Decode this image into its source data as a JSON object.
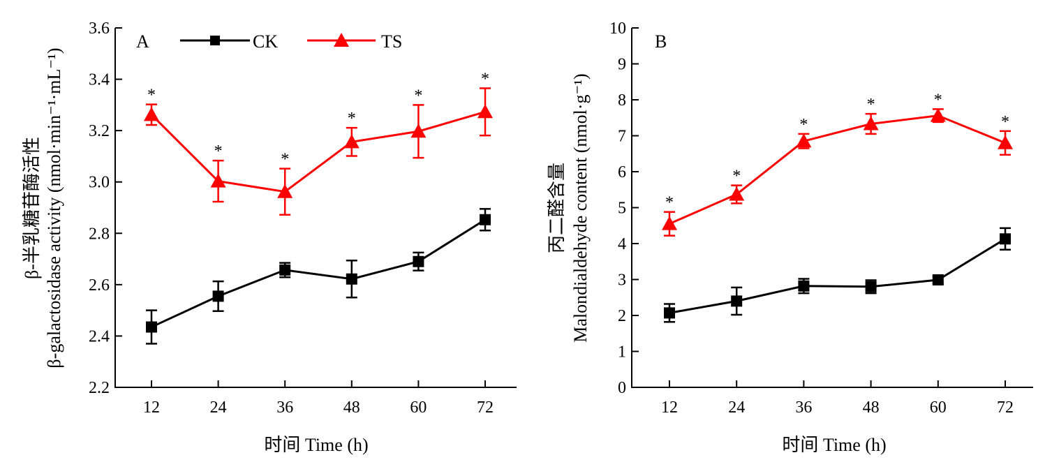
{
  "legend": {
    "ck": "CK",
    "ts": "TS",
    "position": "top"
  },
  "colors": {
    "ck": "#000000",
    "ts": "#ff0000"
  },
  "chart_data": [
    {
      "type": "line",
      "panel_label": "A",
      "x": [
        12,
        24,
        36,
        48,
        60,
        72
      ],
      "xlabel": "时间 Time (h)",
      "ylabel_cn": "β-半乳糖苷酶活性",
      "ylabel_en": "β-galactosidase activity (nmol·min⁻¹·mL⁻¹)",
      "ylim": [
        2.2,
        3.6
      ],
      "yticks": [
        "2.2",
        "2.4",
        "2.6",
        "2.8",
        "3.0",
        "3.2",
        "3.4",
        "3.6"
      ],
      "xticks": [
        "12",
        "24",
        "36",
        "48",
        "60",
        "72"
      ],
      "series": [
        {
          "name": "CK",
          "marker": "square",
          "values": [
            2.435,
            2.555,
            2.657,
            2.622,
            2.69,
            2.853
          ],
          "errors": [
            0.065,
            0.058,
            0.028,
            0.072,
            0.035,
            0.042
          ],
          "sig": [
            "",
            "",
            "",
            "",
            "",
            ""
          ]
        },
        {
          "name": "TS",
          "marker": "triangle",
          "values": [
            3.262,
            3.003,
            2.962,
            3.156,
            3.197,
            3.273
          ],
          "errors": [
            0.04,
            0.08,
            0.09,
            0.055,
            0.103,
            0.092
          ],
          "sig": [
            "*",
            "*",
            "*",
            "*",
            "*",
            "*"
          ]
        }
      ]
    },
    {
      "type": "line",
      "panel_label": "B",
      "x": [
        12,
        24,
        36,
        48,
        60,
        72
      ],
      "xlabel": "时间 Time (h)",
      "ylabel_cn": "丙二醛含量",
      "ylabel_en": "Malondialdehyde content (nmol·g⁻¹)",
      "ylim": [
        0,
        10
      ],
      "yticks": [
        "0",
        "1",
        "2",
        "3",
        "4",
        "5",
        "6",
        "7",
        "8",
        "9",
        "10"
      ],
      "xticks": [
        "12",
        "24",
        "36",
        "48",
        "60",
        "72"
      ],
      "series": [
        {
          "name": "CK",
          "marker": "square",
          "values": [
            2.07,
            2.4,
            2.82,
            2.8,
            2.99,
            4.13
          ],
          "errors": [
            0.25,
            0.38,
            0.2,
            0.18,
            0.1,
            0.3
          ],
          "sig": [
            "",
            "",
            "",
            "",
            "",
            ""
          ]
        },
        {
          "name": "TS",
          "marker": "triangle",
          "values": [
            4.55,
            5.37,
            6.85,
            7.33,
            7.56,
            6.8
          ],
          "errors": [
            0.33,
            0.25,
            0.2,
            0.28,
            0.18,
            0.33
          ],
          "sig": [
            "*",
            "*",
            "*",
            "*",
            "*",
            "*"
          ]
        }
      ]
    }
  ]
}
